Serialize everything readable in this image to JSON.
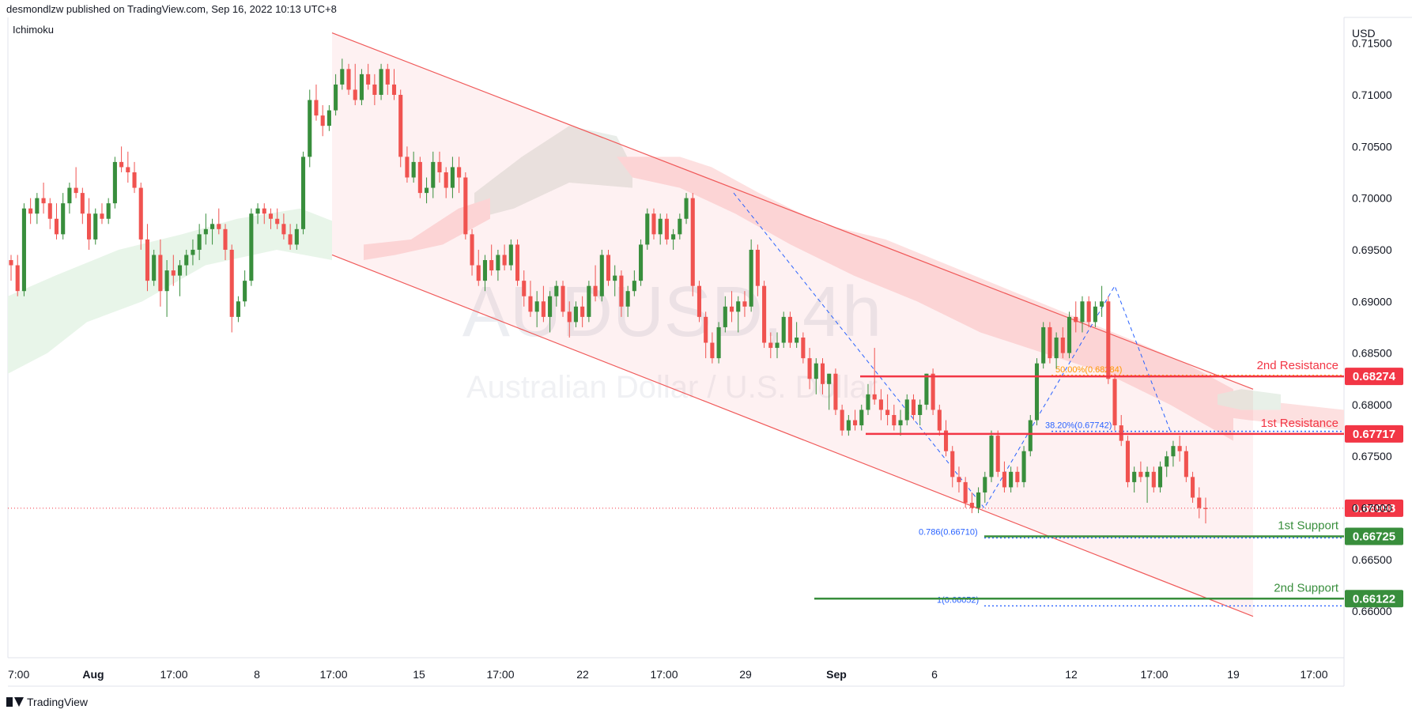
{
  "header": {
    "publisher": "desmondlzw published on TradingView.com, Sep 16, 2022 10:13 UTC+8"
  },
  "indicator_label": "Ichimoku",
  "footer": {
    "brand": "TradingView"
  },
  "colors": {
    "bull": "#26a69a",
    "bear": "#ef5350",
    "candle_green": "#388e3c",
    "candle_red": "#f05350",
    "resistance": "#f23645",
    "support": "#388e3c",
    "channel": "#f05a5a",
    "fib": "#2962ff"
  },
  "chart_data": {
    "type": "candlestick",
    "symbol_watermark": "AUDUSD, 4h",
    "subtitle_watermark": "Australian Dollar / U.S. Dollar",
    "currency": "USD",
    "ylim": [
      0.6555,
      0.7175
    ],
    "y_ticks": [
      "0.71500",
      "0.71000",
      "0.70500",
      "0.70000",
      "0.69500",
      "0.69000",
      "0.68500",
      "0.68000",
      "0.67500",
      "0.67000",
      "0.66500",
      "0.66000"
    ],
    "x_ticks": [
      {
        "label": "7:00",
        "bold": false
      },
      {
        "label": "Aug",
        "bold": true
      },
      {
        "label": "17:00",
        "bold": false
      },
      {
        "label": "8",
        "bold": false
      },
      {
        "label": "17:00",
        "bold": false
      },
      {
        "label": "15",
        "bold": false
      },
      {
        "label": "17:00",
        "bold": false
      },
      {
        "label": "22",
        "bold": false
      },
      {
        "label": "17:00",
        "bold": false
      },
      {
        "label": "29",
        "bold": false
      },
      {
        "label": "Sep",
        "bold": true
      },
      {
        "label": "6",
        "bold": false
      },
      {
        "label": "12",
        "bold": false
      },
      {
        "label": "17:00",
        "bold": false
      },
      {
        "label": "19",
        "bold": false
      },
      {
        "label": "17:00",
        "bold": false
      }
    ],
    "levels": [
      {
        "name": "2nd Resistance",
        "value": 0.68274,
        "label": "0.68274",
        "kind": "resistance"
      },
      {
        "name": "1st Resistance",
        "value": 0.67717,
        "label": "0.67717",
        "kind": "resistance"
      },
      {
        "name": "1st Support",
        "value": 0.66725,
        "label": "0.66725",
        "kind": "support"
      },
      {
        "name": "2nd Support",
        "value": 0.66122,
        "label": "0.66122",
        "kind": "support"
      }
    ],
    "current_price": {
      "value": 0.66998,
      "label": "0.66998"
    },
    "fib_labels": [
      {
        "text": "50.00%(0.68284)",
        "value": 0.68284
      },
      {
        "text": "38.20%(0.67742)",
        "value": 0.67742
      },
      {
        "text": "0.786(0.66710)",
        "value": 0.6671
      },
      {
        "text": "1(0.66052)",
        "value": 0.66052
      }
    ],
    "channel": {
      "upper_start": 0.716,
      "upper_end": 0.6815,
      "lower_start": 0.6945,
      "lower_end": 0.6595
    },
    "candles": [
      [
        0.694,
        0.6945,
        0.692,
        0.6935
      ],
      [
        0.6935,
        0.6945,
        0.6905,
        0.691
      ],
      [
        0.691,
        0.6995,
        0.6905,
        0.699
      ],
      [
        0.699,
        0.7,
        0.6975,
        0.6985
      ],
      [
        0.6985,
        0.7005,
        0.6975,
        0.7
      ],
      [
        0.7,
        0.7015,
        0.6985,
        0.6995
      ],
      [
        0.6995,
        0.7,
        0.697,
        0.698
      ],
      [
        0.698,
        0.6995,
        0.696,
        0.6965
      ],
      [
        0.6965,
        0.7005,
        0.696,
        0.6995
      ],
      [
        0.6995,
        0.7015,
        0.6985,
        0.701
      ],
      [
        0.701,
        0.703,
        0.7,
        0.7005
      ],
      [
        0.7005,
        0.701,
        0.6975,
        0.6985
      ],
      [
        0.6985,
        0.7,
        0.695,
        0.696
      ],
      [
        0.696,
        0.699,
        0.6955,
        0.6985
      ],
      [
        0.6985,
        0.6995,
        0.6975,
        0.698
      ],
      [
        0.698,
        0.7,
        0.6975,
        0.6995
      ],
      [
        0.6995,
        0.704,
        0.699,
        0.7035
      ],
      [
        0.7035,
        0.705,
        0.7025,
        0.703
      ],
      [
        0.703,
        0.7045,
        0.7015,
        0.7025
      ],
      [
        0.7025,
        0.7035,
        0.7005,
        0.701
      ],
      [
        0.701,
        0.7015,
        0.695,
        0.696
      ],
      [
        0.696,
        0.6975,
        0.691,
        0.692
      ],
      [
        0.692,
        0.695,
        0.6915,
        0.6945
      ],
      [
        0.6945,
        0.696,
        0.6895,
        0.691
      ],
      [
        0.691,
        0.694,
        0.6885,
        0.693
      ],
      [
        0.693,
        0.6945,
        0.6915,
        0.6925
      ],
      [
        0.6925,
        0.694,
        0.6905,
        0.6935
      ],
      [
        0.6935,
        0.695,
        0.6925,
        0.6945
      ],
      [
        0.6945,
        0.696,
        0.6935,
        0.695
      ],
      [
        0.695,
        0.6975,
        0.694,
        0.6965
      ],
      [
        0.6965,
        0.6985,
        0.6955,
        0.697
      ],
      [
        0.697,
        0.698,
        0.6955,
        0.6975
      ],
      [
        0.6975,
        0.699,
        0.6965,
        0.697
      ],
      [
        0.697,
        0.6975,
        0.694,
        0.695
      ],
      [
        0.695,
        0.6955,
        0.687,
        0.6885
      ],
      [
        0.6885,
        0.6905,
        0.688,
        0.69
      ],
      [
        0.69,
        0.693,
        0.6895,
        0.692
      ],
      [
        0.692,
        0.699,
        0.6915,
        0.6985
      ],
      [
        0.6985,
        0.6995,
        0.6975,
        0.699
      ],
      [
        0.699,
        0.6995,
        0.6975,
        0.6985
      ],
      [
        0.6985,
        0.699,
        0.697,
        0.698
      ],
      [
        0.698,
        0.699,
        0.697,
        0.6975
      ],
      [
        0.6975,
        0.6985,
        0.696,
        0.6965
      ],
      [
        0.6965,
        0.6975,
        0.695,
        0.6955
      ],
      [
        0.6955,
        0.6975,
        0.695,
        0.697
      ],
      [
        0.697,
        0.7045,
        0.6965,
        0.704
      ],
      [
        0.704,
        0.7105,
        0.703,
        0.7095
      ],
      [
        0.7095,
        0.711,
        0.7075,
        0.708
      ],
      [
        0.708,
        0.709,
        0.706,
        0.707
      ],
      [
        0.707,
        0.709,
        0.7065,
        0.7085
      ],
      [
        0.7085,
        0.712,
        0.708,
        0.711
      ],
      [
        0.711,
        0.7135,
        0.7105,
        0.7125
      ],
      [
        0.7125,
        0.713,
        0.71,
        0.7105
      ],
      [
        0.7105,
        0.713,
        0.709,
        0.7095
      ],
      [
        0.7095,
        0.7125,
        0.709,
        0.712
      ],
      [
        0.712,
        0.713,
        0.7105,
        0.711
      ],
      [
        0.711,
        0.712,
        0.709,
        0.71
      ],
      [
        0.71,
        0.713,
        0.7095,
        0.7125
      ],
      [
        0.7125,
        0.713,
        0.71,
        0.711
      ],
      [
        0.711,
        0.7125,
        0.7095,
        0.71
      ],
      [
        0.71,
        0.7105,
        0.703,
        0.704
      ],
      [
        0.704,
        0.705,
        0.7015,
        0.702
      ],
      [
        0.702,
        0.7045,
        0.7015,
        0.7035
      ],
      [
        0.7035,
        0.704,
        0.7,
        0.7005
      ],
      [
        0.7005,
        0.702,
        0.6995,
        0.701
      ],
      [
        0.701,
        0.7045,
        0.7,
        0.7035
      ],
      [
        0.7035,
        0.7045,
        0.7015,
        0.7025
      ],
      [
        0.7025,
        0.703,
        0.7,
        0.701
      ],
      [
        0.701,
        0.704,
        0.7,
        0.703
      ],
      [
        0.703,
        0.704,
        0.7005,
        0.702
      ],
      [
        0.702,
        0.7025,
        0.696,
        0.6965
      ],
      [
        0.6965,
        0.697,
        0.6925,
        0.6935
      ],
      [
        0.6935,
        0.695,
        0.6915,
        0.692
      ],
      [
        0.692,
        0.6945,
        0.691,
        0.694
      ],
      [
        0.694,
        0.6955,
        0.6925,
        0.693
      ],
      [
        0.693,
        0.695,
        0.692,
        0.6945
      ],
      [
        0.6945,
        0.6955,
        0.693,
        0.6935
      ],
      [
        0.6935,
        0.696,
        0.693,
        0.6955
      ],
      [
        0.6955,
        0.696,
        0.6915,
        0.692
      ],
      [
        0.692,
        0.693,
        0.6895,
        0.6905
      ],
      [
        0.6905,
        0.692,
        0.6885,
        0.689
      ],
      [
        0.689,
        0.691,
        0.6875,
        0.69
      ],
      [
        0.69,
        0.6915,
        0.688,
        0.6885
      ],
      [
        0.6885,
        0.691,
        0.687,
        0.6905
      ],
      [
        0.6905,
        0.692,
        0.6895,
        0.6915
      ],
      [
        0.6915,
        0.692,
        0.6885,
        0.689
      ],
      [
        0.689,
        0.69,
        0.6865,
        0.688
      ],
      [
        0.688,
        0.69,
        0.6875,
        0.6895
      ],
      [
        0.6895,
        0.6905,
        0.6875,
        0.6885
      ],
      [
        0.6885,
        0.692,
        0.688,
        0.6915
      ],
      [
        0.6915,
        0.6935,
        0.69,
        0.6905
      ],
      [
        0.6905,
        0.695,
        0.69,
        0.6945
      ],
      [
        0.6945,
        0.695,
        0.6915,
        0.692
      ],
      [
        0.692,
        0.6935,
        0.6905,
        0.6925
      ],
      [
        0.6925,
        0.693,
        0.6885,
        0.6895
      ],
      [
        0.6895,
        0.6915,
        0.6885,
        0.691
      ],
      [
        0.691,
        0.693,
        0.6905,
        0.692
      ],
      [
        0.692,
        0.696,
        0.6915,
        0.6955
      ],
      [
        0.6955,
        0.699,
        0.695,
        0.6985
      ],
      [
        0.6985,
        0.699,
        0.696,
        0.6965
      ],
      [
        0.6965,
        0.6985,
        0.6955,
        0.698
      ],
      [
        0.698,
        0.6985,
        0.6955,
        0.696
      ],
      [
        0.696,
        0.697,
        0.695,
        0.6965
      ],
      [
        0.6965,
        0.6985,
        0.696,
        0.698
      ],
      [
        0.698,
        0.7005,
        0.6975,
        0.7
      ],
      [
        0.7,
        0.7005,
        0.6905,
        0.6915
      ],
      [
        0.6915,
        0.692,
        0.688,
        0.6885
      ],
      [
        0.6885,
        0.689,
        0.6845,
        0.686
      ],
      [
        0.686,
        0.687,
        0.684,
        0.6845
      ],
      [
        0.6845,
        0.688,
        0.684,
        0.6875
      ],
      [
        0.6875,
        0.6905,
        0.687,
        0.6895
      ],
      [
        0.6895,
        0.691,
        0.688,
        0.689
      ],
      [
        0.689,
        0.6905,
        0.687,
        0.69
      ],
      [
        0.69,
        0.691,
        0.6885,
        0.6895
      ],
      [
        0.6895,
        0.696,
        0.689,
        0.695
      ],
      [
        0.695,
        0.6955,
        0.6905,
        0.6915
      ],
      [
        0.6915,
        0.692,
        0.6855,
        0.686
      ],
      [
        0.686,
        0.687,
        0.6845,
        0.6855
      ],
      [
        0.6855,
        0.687,
        0.6845,
        0.686
      ],
      [
        0.686,
        0.689,
        0.6855,
        0.6885
      ],
      [
        0.6885,
        0.689,
        0.6855,
        0.686
      ],
      [
        0.686,
        0.688,
        0.6855,
        0.6865
      ],
      [
        0.6865,
        0.687,
        0.684,
        0.6845
      ],
      [
        0.6845,
        0.6855,
        0.6815,
        0.6825
      ],
      [
        0.6825,
        0.6845,
        0.681,
        0.684
      ],
      [
        0.684,
        0.6845,
        0.681,
        0.682
      ],
      [
        0.682,
        0.683,
        0.6795,
        0.683
      ],
      [
        0.683,
        0.6835,
        0.679,
        0.6795
      ],
      [
        0.6795,
        0.68,
        0.677,
        0.6775
      ],
      [
        0.6775,
        0.679,
        0.677,
        0.6785
      ],
      [
        0.6785,
        0.6795,
        0.6775,
        0.678
      ],
      [
        0.678,
        0.68,
        0.6775,
        0.6795
      ],
      [
        0.6795,
        0.682,
        0.679,
        0.681
      ],
      [
        0.681,
        0.6855,
        0.68,
        0.6805
      ],
      [
        0.6805,
        0.6815,
        0.6785,
        0.6795
      ],
      [
        0.6795,
        0.681,
        0.678,
        0.679
      ],
      [
        0.679,
        0.68,
        0.6775,
        0.678
      ],
      [
        0.678,
        0.6795,
        0.677,
        0.6785
      ],
      [
        0.6785,
        0.681,
        0.678,
        0.6805
      ],
      [
        0.6805,
        0.681,
        0.6785,
        0.679
      ],
      [
        0.679,
        0.6805,
        0.678,
        0.68
      ],
      [
        0.68,
        0.683,
        0.6795,
        0.683
      ],
      [
        0.683,
        0.6835,
        0.679,
        0.6795
      ],
      [
        0.6795,
        0.68,
        0.677,
        0.6775
      ],
      [
        0.6775,
        0.6785,
        0.675,
        0.6755
      ],
      [
        0.6755,
        0.676,
        0.672,
        0.673
      ],
      [
        0.673,
        0.674,
        0.6715,
        0.6725
      ],
      [
        0.6725,
        0.673,
        0.67,
        0.6705
      ],
      [
        0.6705,
        0.6715,
        0.6695,
        0.67
      ],
      [
        0.67,
        0.672,
        0.6695,
        0.6715
      ],
      [
        0.6715,
        0.6735,
        0.6705,
        0.673
      ],
      [
        0.673,
        0.6775,
        0.6725,
        0.677
      ],
      [
        0.677,
        0.6775,
        0.673,
        0.6735
      ],
      [
        0.6735,
        0.6745,
        0.6715,
        0.672
      ],
      [
        0.672,
        0.674,
        0.6715,
        0.6735
      ],
      [
        0.6735,
        0.674,
        0.672,
        0.6725
      ],
      [
        0.6725,
        0.676,
        0.672,
        0.6755
      ],
      [
        0.6755,
        0.679,
        0.675,
        0.6785
      ],
      [
        0.6785,
        0.6845,
        0.678,
        0.684
      ],
      [
        0.684,
        0.688,
        0.6835,
        0.6875
      ],
      [
        0.6875,
        0.688,
        0.684,
        0.6845
      ],
      [
        0.6845,
        0.687,
        0.6835,
        0.6865
      ],
      [
        0.6865,
        0.6875,
        0.6845,
        0.685
      ],
      [
        0.685,
        0.689,
        0.6845,
        0.6885
      ],
      [
        0.6885,
        0.69,
        0.687,
        0.688
      ],
      [
        0.688,
        0.6905,
        0.687,
        0.69
      ],
      [
        0.69,
        0.6905,
        0.6875,
        0.688
      ],
      [
        0.688,
        0.69,
        0.6875,
        0.6895
      ],
      [
        0.6895,
        0.6915,
        0.6885,
        0.69
      ],
      [
        0.69,
        0.6905,
        0.682,
        0.6825
      ],
      [
        0.6825,
        0.683,
        0.6775,
        0.678
      ],
      [
        0.678,
        0.679,
        0.676,
        0.6765
      ],
      [
        0.6765,
        0.677,
        0.672,
        0.6725
      ],
      [
        0.6725,
        0.674,
        0.6715,
        0.6735
      ],
      [
        0.6735,
        0.6745,
        0.6725,
        0.673
      ],
      [
        0.673,
        0.674,
        0.6705,
        0.6735
      ],
      [
        0.6735,
        0.674,
        0.6715,
        0.672
      ],
      [
        0.672,
        0.6745,
        0.6715,
        0.674
      ],
      [
        0.674,
        0.6755,
        0.673,
        0.675
      ],
      [
        0.675,
        0.6765,
        0.674,
        0.676
      ],
      [
        0.676,
        0.677,
        0.6745,
        0.6755
      ],
      [
        0.6755,
        0.676,
        0.6725,
        0.673
      ],
      [
        0.673,
        0.6735,
        0.6705,
        0.671
      ],
      [
        0.671,
        0.672,
        0.669,
        0.67
      ],
      [
        0.67,
        0.671,
        0.6685,
        0.6699
      ]
    ]
  }
}
